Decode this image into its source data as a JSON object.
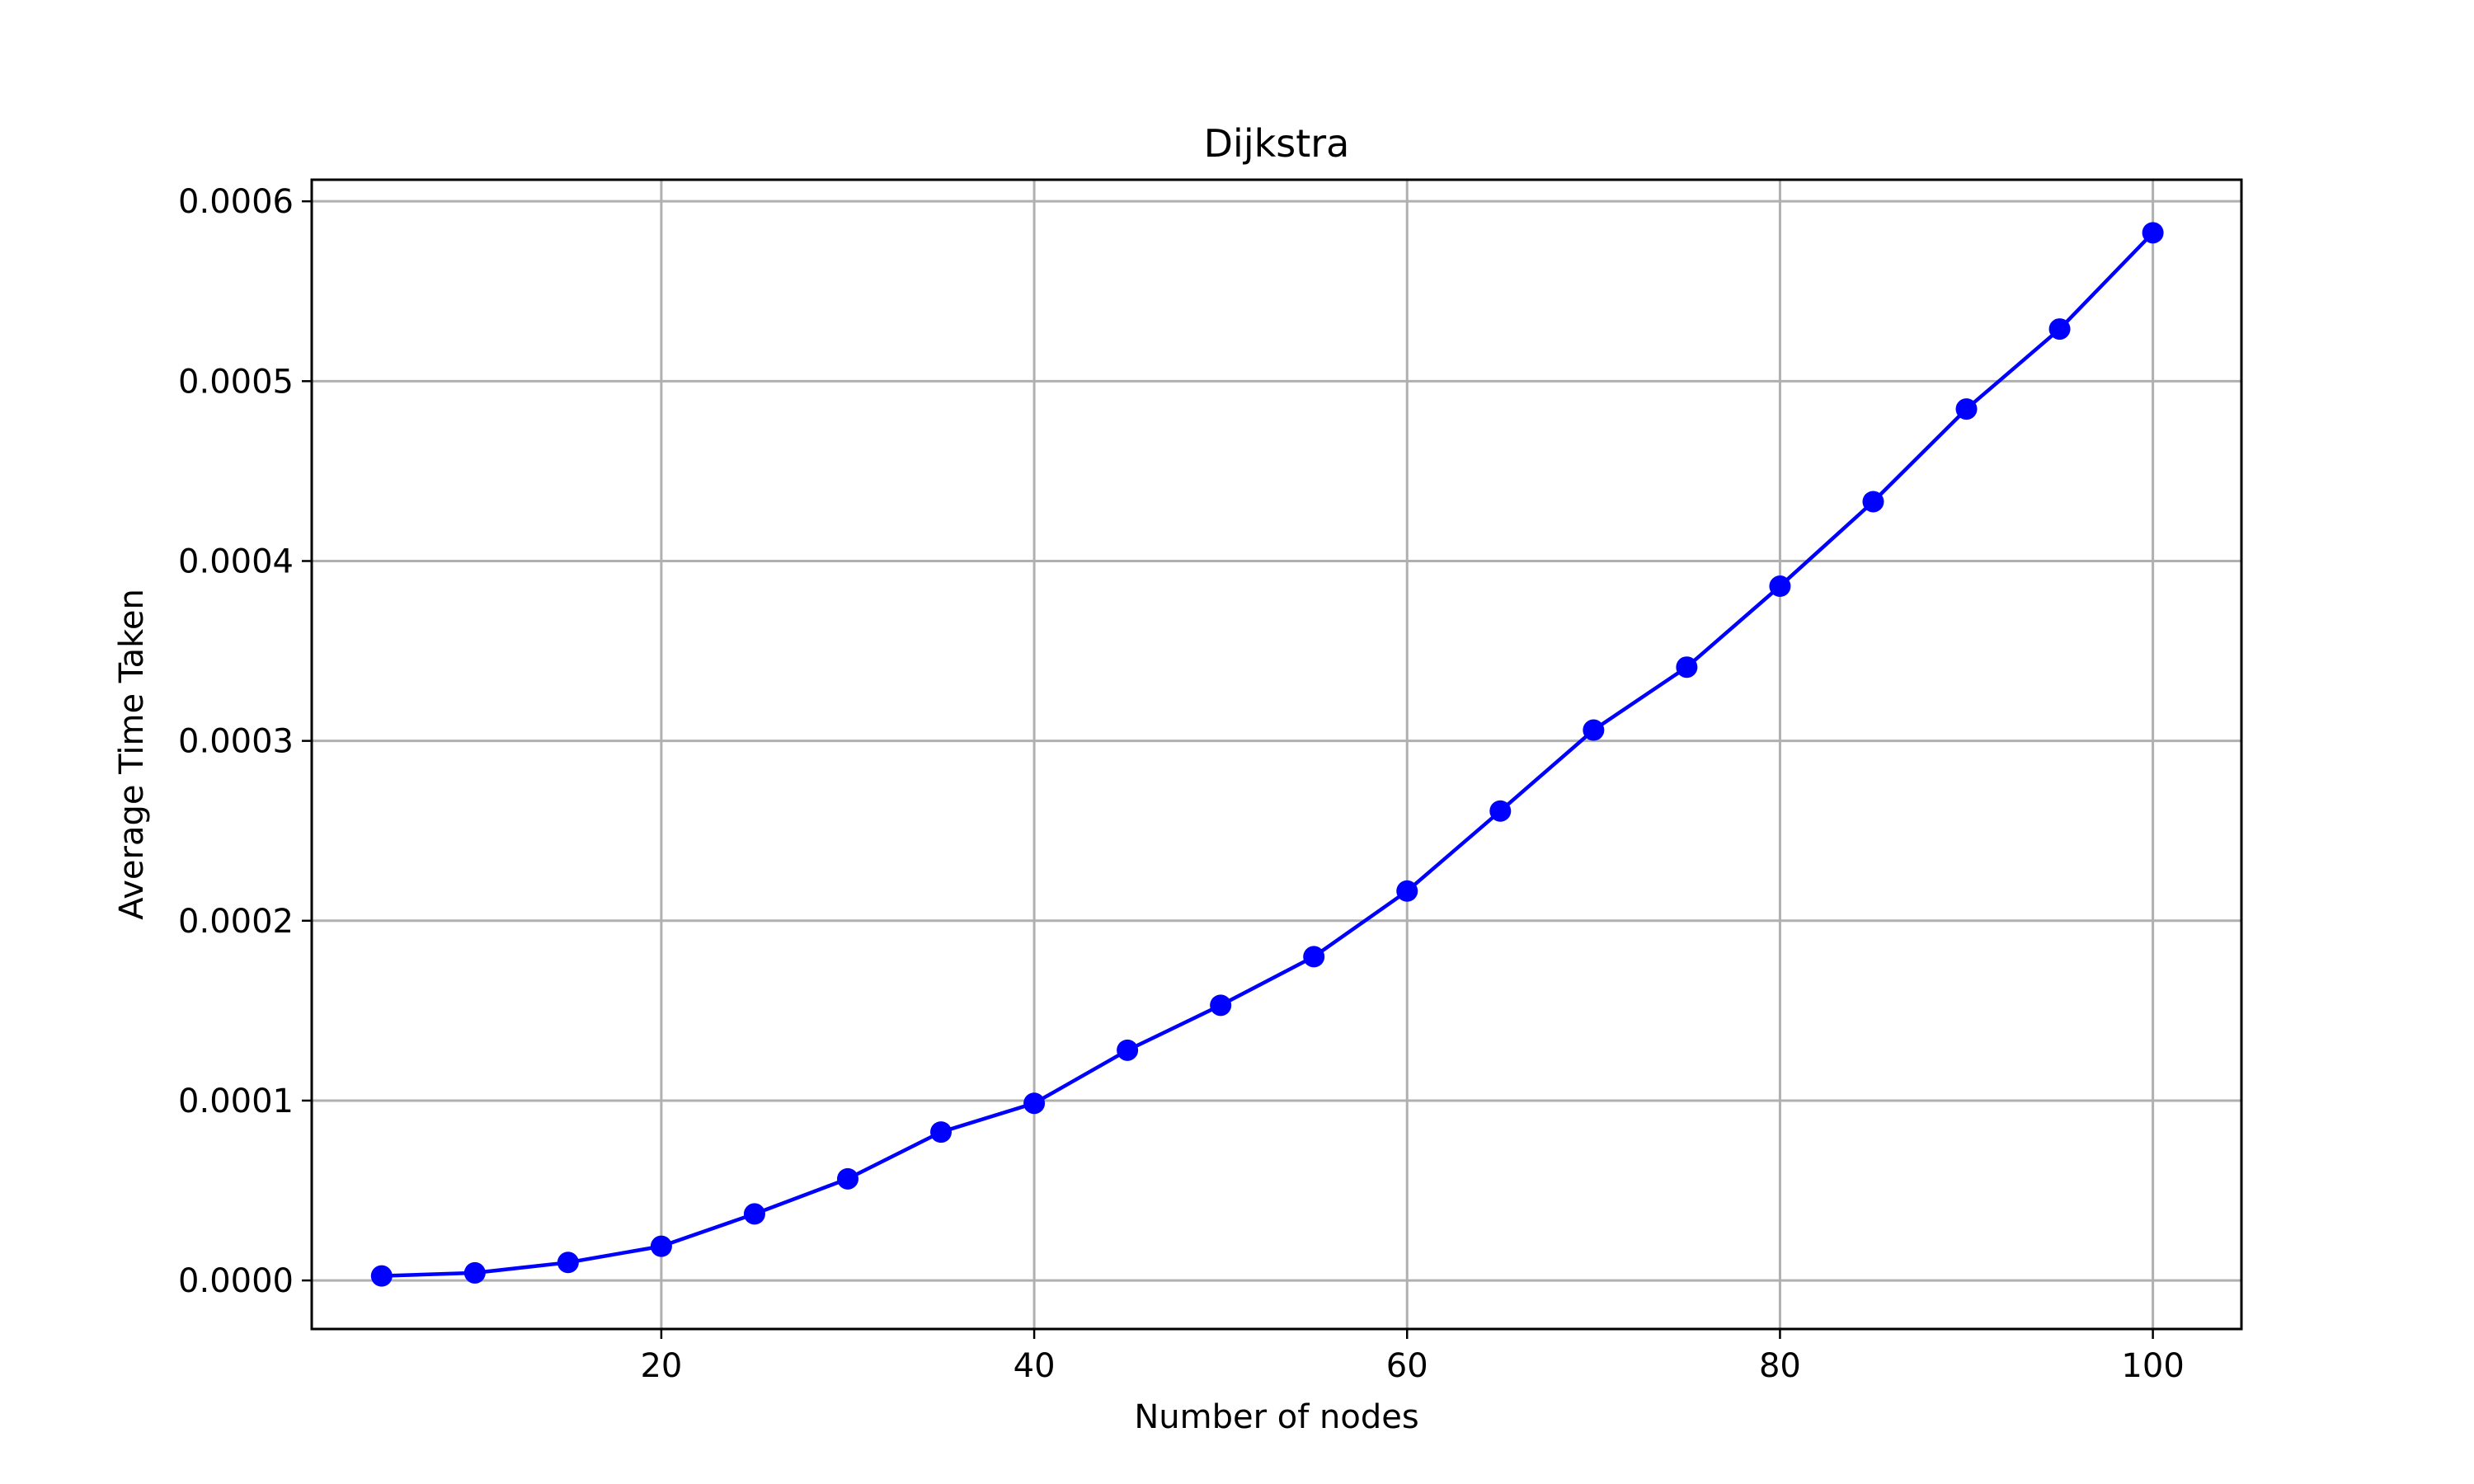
{
  "chart_data": {
    "type": "line",
    "title": "Dijkstra",
    "xlabel": "Number of nodes",
    "ylabel": "Average Time Taken",
    "xlim": [
      1.25,
      104.75
    ],
    "ylim": [
      -2.7e-05,
      0.000612
    ],
    "x_ticks": [
      20,
      40,
      60,
      80,
      100
    ],
    "x_tick_labels": [
      "20",
      "40",
      "60",
      "80",
      "100"
    ],
    "y_ticks": [
      0,
      0.0001,
      0.0002,
      0.0003,
      0.0004,
      0.0005,
      0.0006
    ],
    "y_tick_labels": [
      "0.0000",
      "0.0001",
      "0.0002",
      "0.0003",
      "0.0004",
      "0.0005",
      "0.0006"
    ],
    "grid": true,
    "color": "#0000ff",
    "marker": "circle",
    "x": [
      5,
      10,
      15,
      20,
      25,
      30,
      35,
      40,
      45,
      50,
      55,
      60,
      65,
      70,
      75,
      80,
      85,
      90,
      95,
      100
    ],
    "values": [
      2.5e-06,
      4.2e-06,
      1e-05,
      1.9e-05,
      3.7e-05,
      5.65e-05,
      8.25e-05,
      9.85e-05,
      0.000128,
      0.000153,
      0.00018,
      0.0002165,
      0.000261,
      0.000306,
      0.000341,
      0.000386,
      0.000433,
      0.0004845,
      0.000529,
      0.0005825
    ]
  }
}
